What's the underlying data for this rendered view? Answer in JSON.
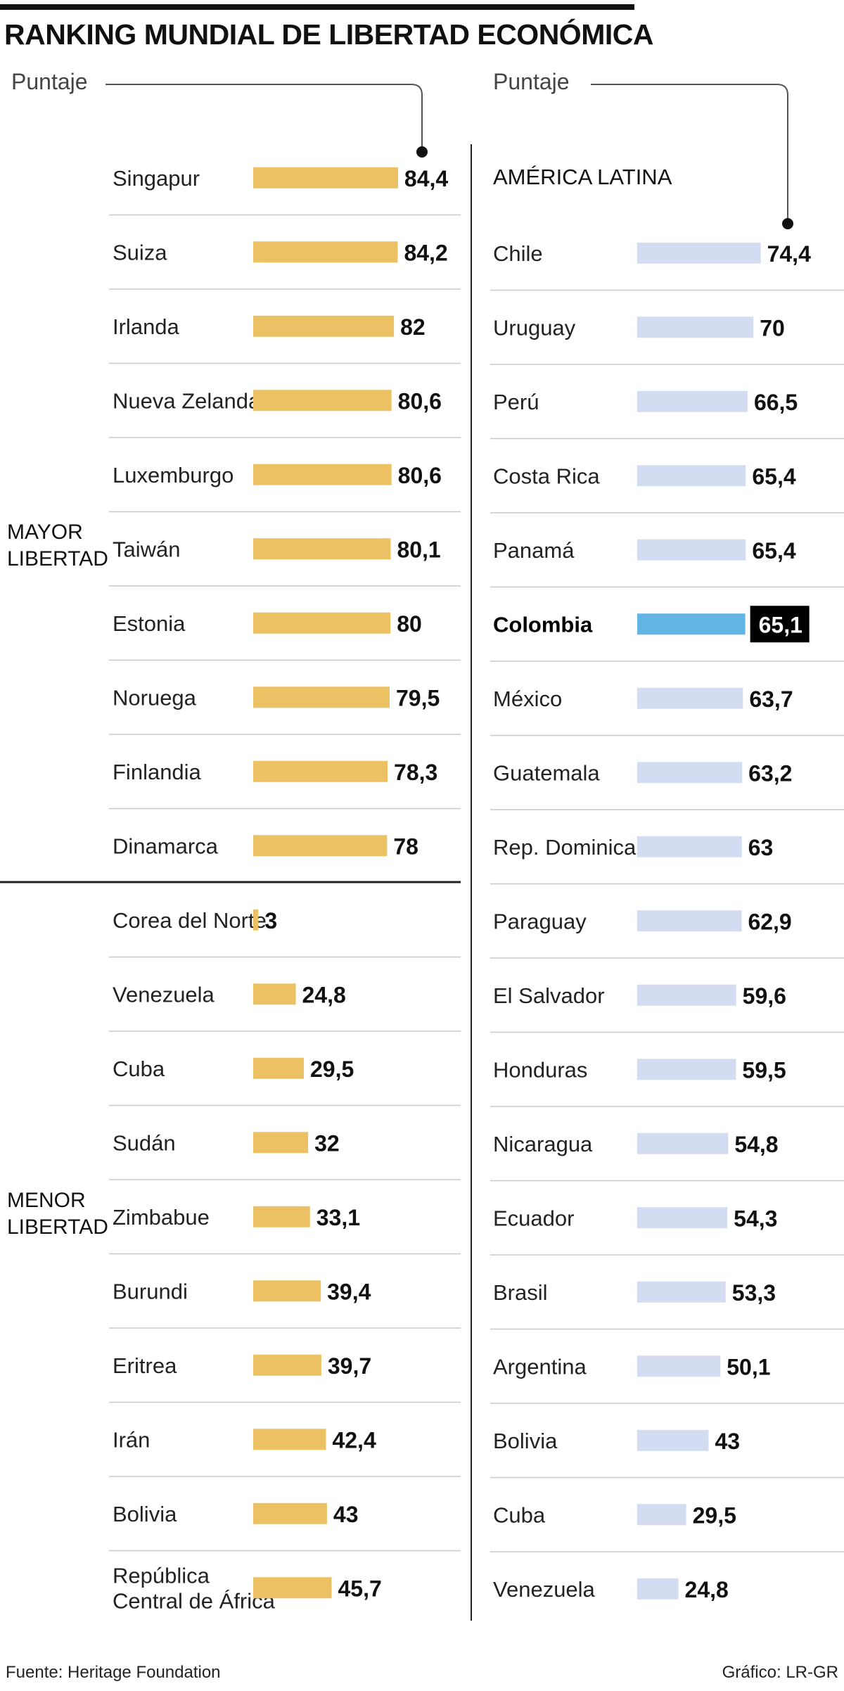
{
  "title": "RANKING MUNDIAL DE LIBERTAD ECONÓMICA",
  "axis_label_left": "Puntaje",
  "axis_label_right": "Puntaje",
  "group_labels": {
    "mayor": [
      "MAYOR",
      "LIBERTAD"
    ],
    "menor": [
      "MENOR",
      "LIBERTAD"
    ]
  },
  "latam_heading": "AMÉRICA LATINA",
  "source": "Fuente: Heritage Foundation",
  "credit": "Gráfico: LR-GR",
  "colors": {
    "world_bar": "#ecc163",
    "latam_bar": "#d3dcf0",
    "highlight_bar": "#62b5e5",
    "highlight_value_bg": "#000000",
    "divider": "#c8c8c8",
    "text": "#111111"
  },
  "chart_data": [
    {
      "type": "bar",
      "orientation": "horizontal",
      "title": "Mayor libertad",
      "categories": [
        "Singapur",
        "Suiza",
        "Irlanda",
        "Nueva Zelanda",
        "Luxemburgo",
        "Taiwán",
        "Estonia",
        "Noruega",
        "Finlandia",
        "Dinamarca"
      ],
      "values": [
        84.4,
        84.2,
        82,
        80.6,
        80.6,
        80.1,
        80,
        79.5,
        78.3,
        78
      ],
      "value_labels": [
        "84,4",
        "84,2",
        "82",
        "80,6",
        "80,6",
        "80,1",
        "80",
        "79,5",
        "78,3",
        "78"
      ],
      "xlabel": "Puntaje",
      "xlim": [
        0,
        100
      ]
    },
    {
      "type": "bar",
      "orientation": "horizontal",
      "title": "Menor libertad",
      "categories": [
        "Corea del Norte",
        "Venezuela",
        "Cuba",
        "Sudán",
        "Zimbabue",
        "Burundi",
        "Eritrea",
        "Irán",
        "Bolivia",
        "República Central de África"
      ],
      "category_lines": [
        [
          "Corea del Norte"
        ],
        [
          "Venezuela"
        ],
        [
          "Cuba"
        ],
        [
          "Sudán"
        ],
        [
          "Zimbabue"
        ],
        [
          "Burundi"
        ],
        [
          "Eritrea"
        ],
        [
          "Irán"
        ],
        [
          "Bolivia"
        ],
        [
          "República",
          "Central de África"
        ]
      ],
      "values": [
        3,
        24.8,
        29.5,
        32,
        33.1,
        39.4,
        39.7,
        42.4,
        43,
        45.7
      ],
      "value_labels": [
        "3",
        "24,8",
        "29,5",
        "32",
        "33,1",
        "39,4",
        "39,7",
        "42,4",
        "43",
        "45,7"
      ],
      "xlabel": "Puntaje",
      "xlim": [
        0,
        100
      ]
    },
    {
      "type": "bar",
      "orientation": "horizontal",
      "title": "AMÉRICA LATINA",
      "categories": [
        "Chile",
        "Uruguay",
        "Perú",
        "Costa Rica",
        "Panamá",
        "Colombia",
        "México",
        "Guatemala",
        "Rep. Dominicana",
        "Paraguay",
        "El Salvador",
        "Honduras",
        "Nicaragua",
        "Ecuador",
        "Brasil",
        "Argentina",
        "Bolivia",
        "Cuba",
        "Venezuela"
      ],
      "values": [
        74.4,
        70,
        66.5,
        65.4,
        65.4,
        65.1,
        63.7,
        63.2,
        63,
        62.9,
        59.6,
        59.5,
        54.8,
        54.3,
        53.3,
        50.1,
        43,
        29.5,
        24.8
      ],
      "value_labels": [
        "74,4",
        "70",
        "66,5",
        "65,4",
        "65,4",
        "65,1",
        "63,7",
        "63,2",
        "63",
        "62,9",
        "59,6",
        "59,5",
        "54,8",
        "54,3",
        "53,3",
        "50,1",
        "43",
        "29,5",
        "24,8"
      ],
      "highlight": "Colombia",
      "xlabel": "Puntaje",
      "xlim": [
        0,
        100
      ]
    }
  ]
}
